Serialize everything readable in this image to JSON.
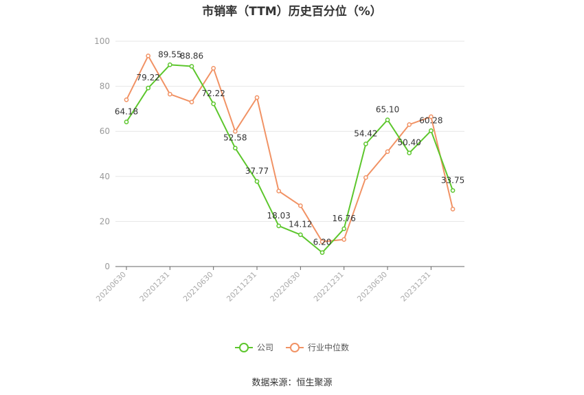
{
  "chart_data": {
    "type": "line",
    "title": "市销率（TTM）历史百分位（%）",
    "x_tick_labels": [
      "20200630",
      "20201231",
      "20210630",
      "20211231",
      "20220630",
      "20221231",
      "20230630",
      "20231231"
    ],
    "y_ticks": [
      0,
      20,
      40,
      60,
      80,
      100
    ],
    "ylim": [
      0,
      100
    ],
    "grid": true,
    "legend_position": "bottom",
    "series": [
      {
        "name": "公司",
        "color": "#5cc62c",
        "values": [
          64.18,
          79.22,
          89.55,
          88.86,
          72.22,
          52.58,
          37.77,
          18.03,
          14.12,
          6.2,
          16.76,
          54.42,
          65.1,
          50.4,
          60.28,
          33.75
        ],
        "labels": [
          "64.18",
          "79.22",
          "89.55",
          "88.86",
          "72.22",
          "52.58",
          "37.77",
          "18.03",
          "14.12",
          "6.20",
          "16.76",
          "54.42",
          "65.10",
          "50.40",
          "60.28",
          "33.75"
        ]
      },
      {
        "name": "行业中位数",
        "color": "#f19264",
        "values": [
          74,
          93.5,
          76.5,
          73,
          88,
          60,
          75,
          33.5,
          27,
          11,
          12,
          39.5,
          51,
          63,
          66.5,
          25.5
        ]
      }
    ]
  },
  "source_text": "数据来源：恒生聚源"
}
